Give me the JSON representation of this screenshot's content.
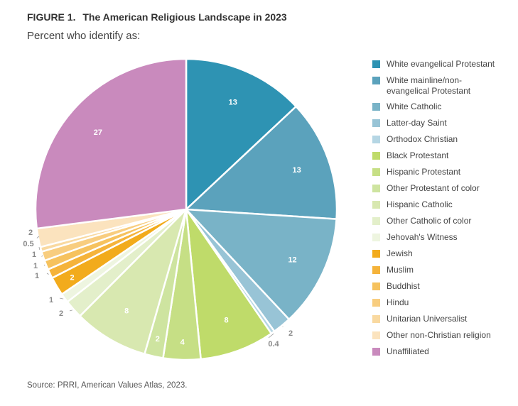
{
  "header": {
    "figure_label": "FIGURE 1.",
    "title": "The American Religious Landscape in 2023",
    "subtitle": "Percent who identify as:"
  },
  "source": "Source: PRRI, American Values Atlas, 2023.",
  "chart_data": {
    "type": "pie",
    "start": "12 o'clock",
    "direction": "clockwise",
    "legend_placement": "right",
    "slices": [
      {
        "label": "White evangelical Protestant",
        "value": 13,
        "value_label": "13",
        "color": "#2e93b3"
      },
      {
        "label": "White mainline/non-evangelical Protestant",
        "value": 13,
        "value_label": "13",
        "color": "#5ba2bc"
      },
      {
        "label": "White Catholic",
        "value": 12,
        "value_label": "12",
        "color": "#79b3c7"
      },
      {
        "label": "Latter-day Saint",
        "value": 2,
        "value_label": "2",
        "color": "#98c4d6"
      },
      {
        "label": "Orthodox Christian",
        "value": 0.4,
        "value_label": "0.4",
        "color": "#b5d6e4"
      },
      {
        "label": "Black Protestant",
        "value": 8,
        "value_label": "8",
        "color": "#bfdb6a"
      },
      {
        "label": "Hispanic Protestant",
        "value": 4,
        "value_label": "4",
        "color": "#c6df85"
      },
      {
        "label": "Other Protestant of color",
        "value": 2,
        "value_label": "2",
        "color": "#cee4a0"
      },
      {
        "label": "Hispanic Catholic",
        "value": 8,
        "value_label": "8",
        "color": "#d8e8b0"
      },
      {
        "label": "Other Catholic of color",
        "value": 2,
        "value_label": "2",
        "color": "#e3efca"
      },
      {
        "label": "Jehovah's Witness",
        "value": 1,
        "value_label": "1",
        "color": "#eef5e0"
      },
      {
        "label": "Jewish",
        "value": 2,
        "value_label": "2",
        "color": "#f2ab1c"
      },
      {
        "label": "Muslim",
        "value": 1,
        "value_label": "1",
        "color": "#f5b33a"
      },
      {
        "label": "Buddhist",
        "value": 1,
        "value_label": "1",
        "color": "#f6c25e"
      },
      {
        "label": "Hindu",
        "value": 1,
        "value_label": "1",
        "color": "#f8cd7f"
      },
      {
        "label": "Unitarian Universalist",
        "value": 0.5,
        "value_label": "0.5",
        "color": "#f9d9a0"
      },
      {
        "label": "Other non-Christian religion",
        "value": 2,
        "value_label": "2",
        "color": "#fbe3be"
      },
      {
        "label": "Unaffiliated",
        "value": 27,
        "value_label": "27",
        "color": "#c98abd"
      }
    ]
  }
}
